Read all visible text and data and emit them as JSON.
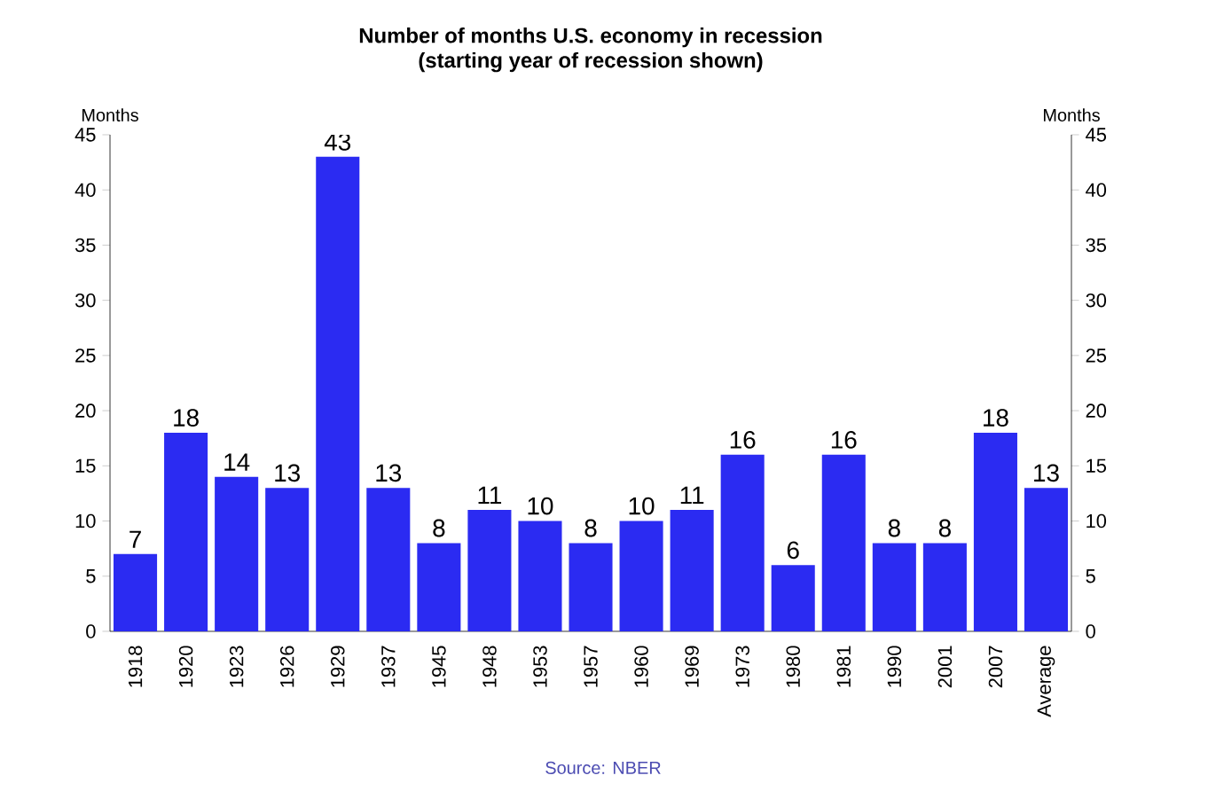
{
  "chart_data": {
    "type": "bar",
    "title": "Number of months U.S. economy in recession",
    "subtitle": "(starting year of recession shown)",
    "ylabel": "Months",
    "y2label": "Months",
    "categories": [
      "1918",
      "1920",
      "1923",
      "1926",
      "1929",
      "1937",
      "1945",
      "1948",
      "1953",
      "1957",
      "1960",
      "1969",
      "1973",
      "1980",
      "1981",
      "1990",
      "2001",
      "2007",
      "Average"
    ],
    "values": [
      7,
      18,
      14,
      13,
      43,
      13,
      8,
      11,
      10,
      8,
      10,
      11,
      16,
      6,
      16,
      8,
      8,
      18,
      13
    ],
    "color": "#2b2bf2",
    "data_labels": true,
    "ylim": [
      0,
      45
    ],
    "yticks": [
      0,
      5,
      10,
      15,
      20,
      25,
      30,
      35,
      40,
      45
    ],
    "y2lim": [
      0,
      45
    ],
    "y2ticks": [
      0,
      5,
      10,
      15,
      20,
      25,
      30,
      35,
      40,
      45
    ],
    "annotations": [
      "Source: NBER"
    ]
  }
}
